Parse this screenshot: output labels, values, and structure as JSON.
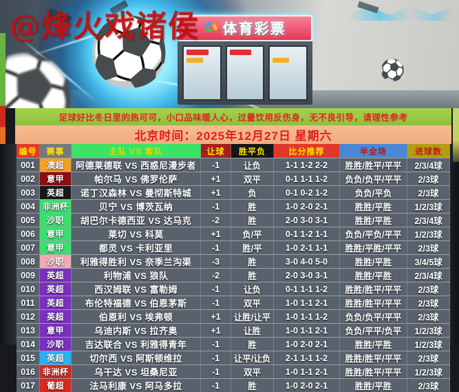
{
  "watermark": "@烽火戏诸侯",
  "hero": {
    "sign_text": "体育彩票",
    "soccer_ball_icon": "⚽"
  },
  "notice_banner": "足球好比冬日里的热可可，小口品味暖人心，过量饮用反伤身，无不良引导，请理性参考",
  "datetime_banner": "北京时间：2025年12月27日 星期六",
  "table": {
    "headers": [
      {
        "label": "编号",
        "bg": "#e23b2b",
        "fg": "#ffe400"
      },
      {
        "label": "赛事",
        "bg": "#74797f",
        "fg": "#ffe400"
      },
      {
        "label": "主队 VS 客队",
        "bg": "#3ae364",
        "fg": "#d8dc00"
      },
      {
        "label": "让球",
        "bg": "#a32020",
        "fg": "#ffe400"
      },
      {
        "label": "胜平负",
        "bg": "#161616",
        "fg": "#ffe400"
      },
      {
        "label": "比分推荐",
        "bg": "#e2372b",
        "fg": "#ffe400"
      },
      {
        "label": "半全场",
        "bg": "#4a87d4",
        "fg": "#a81d1d"
      },
      {
        "label": "进球数",
        "bg": "#b39c10",
        "fg": "#c21a1a"
      }
    ],
    "rows": [
      {
        "id": "001",
        "league": "澳超",
        "league_bg": "#efa224",
        "teams": "阿德莱德联 VS 西惑尼漫步者",
        "handicap": "-1",
        "wdl": "让负",
        "scores": "1-1 1-2 2-2",
        "half_full": "胜胜/胜平/平平",
        "goals": "2/3/4球"
      },
      {
        "id": "002",
        "league": "意甲",
        "league_bg": "#8f0d0d",
        "teams": "帕尔马 VS 佛罗伦萨",
        "handicap": "+1",
        "wdl": "双平",
        "scores": "0-1 1-1 1-2",
        "half_full": "负负/负平/平平",
        "goals": "2/3球"
      },
      {
        "id": "003",
        "league": "英超",
        "league_bg": "#17181a",
        "teams": "诺丁汉森林 VS 曼彻斯特城",
        "handicap": "+1",
        "wdl": "负",
        "scores": "0-1 0-2 1-2",
        "half_full": "负负/平负",
        "goals": "2/3球"
      },
      {
        "id": "004",
        "league": "非洲杯",
        "league_bg": "#3bdf6f",
        "teams": "贝宁 VS 博茨瓦纳",
        "handicap": "-1",
        "wdl": "胜",
        "scores": "1-0 2-0 2-1",
        "half_full": "胜胜/平胜",
        "goals": "1/2/3球"
      },
      {
        "id": "005",
        "league": "沙职",
        "league_bg": "#3bdf6f",
        "teams": "胡巴尔卡德西亚 VS 达马克",
        "handicap": "-2",
        "wdl": "胜",
        "scores": "2-0 3-0 3-1",
        "half_full": "胜胜/平胜",
        "goals": "2/3/4球"
      },
      {
        "id": "006",
        "league": "意甲",
        "league_bg": "#3bdf6f",
        "teams": "莱切 VS 科莫",
        "handicap": "+1",
        "wdl": "负/平",
        "scores": "0-1 1-2 1-1",
        "half_full": "负负/平负/平平",
        "goals": "1/2/3球"
      },
      {
        "id": "007",
        "league": "意甲",
        "league_bg": "#3bdf6f",
        "teams": "都灵 VS 卡利亚里",
        "handicap": "-1",
        "wdl": "胜/平",
        "scores": "1-0 2-1 1-1",
        "half_full": "胜胜/平胜/平平",
        "goals": "2/3球"
      },
      {
        "id": "008",
        "league": "沙职",
        "league_bg": "#f4a9b0",
        "teams": "利雅得胜利 VS 奈季兰沟渠",
        "handicap": "-3",
        "wdl": "胜",
        "scores": "3-0 4-0 5-0",
        "half_full": "胜胜/平胜",
        "goals": "3/4/5球"
      },
      {
        "id": "009",
        "league": "英超",
        "league_bg": "#7b2fc0",
        "teams": "利物浦 VS 狼队",
        "handicap": "-2",
        "wdl": "胜",
        "scores": "2-0 3-0 3-1",
        "half_full": "胜胜/平胜",
        "goals": "2/3/4球"
      },
      {
        "id": "010",
        "league": "英超",
        "league_bg": "#7b2fc0",
        "teams": "西汉姆联 VS 富勒姆",
        "handicap": "-1",
        "wdl": "让负",
        "scores": "0-1 1-1 1-2",
        "half_full": "胜胜/胜平/平平",
        "goals": "2/3球"
      },
      {
        "id": "011",
        "league": "英超",
        "league_bg": "#7b2fc0",
        "teams": "布伦特福德 VS 伯恩茅斯",
        "handicap": "-1",
        "wdl": "双平",
        "scores": "1-0 1-1 2-1",
        "half_full": "胜胜/胜平/平平",
        "goals": "2/3球"
      },
      {
        "id": "012",
        "league": "英超",
        "league_bg": "#7b2fc0",
        "teams": "伯恩利 VS 埃弗顿",
        "handicap": "+1",
        "wdl": "让胜/让平",
        "scores": "1-0 1-1 1-2",
        "half_full": "负负/负平/平平",
        "goals": "2/3球"
      },
      {
        "id": "013",
        "league": "意甲",
        "league_bg": "#7b2fc0",
        "teams": "乌迪内斯 VS 拉齐奥",
        "handicap": "+1",
        "wdl": "让胜",
        "scores": "1-0 1-1 2-1",
        "half_full": "负负/平平/负平",
        "goals": "1/2/3球"
      },
      {
        "id": "014",
        "league": "沙职",
        "league_bg": "#7b2fc0",
        "teams": "吉达联合 VS 利雅得青年",
        "handicap": "-1",
        "wdl": "胜",
        "scores": "1-0 2-0 2-1",
        "half_full": "胜胜/平胜",
        "goals": "1/2/3球"
      },
      {
        "id": "015",
        "league": "英超",
        "league_bg": "#29b1f2",
        "teams": "切尔西 VS 阿斯顿维拉",
        "handicap": "-1",
        "wdl": "让平/让负",
        "scores": "2-1 1-1 1-2",
        "half_full": "胜胜/胜平/平平",
        "goals": "2/3球"
      },
      {
        "id": "016",
        "league": "非洲杯",
        "league_bg": "#d8281f",
        "teams": "乌干达 VS 坦桑尼亚",
        "handicap": "-1",
        "wdl": "双平",
        "scores": "1-0 1-1 2-1",
        "half_full": "胜胜/胜平/平平",
        "goals": "1/2/3球"
      },
      {
        "id": "017",
        "league": "葡超",
        "league_bg": "#d8281f",
        "teams": "法马利康 VS 阿马多拉",
        "handicap": "-1",
        "wdl": "胜",
        "scores": "1-0 2-0 2-1",
        "half_full": "胜胜/平胜",
        "goals": "2/3球"
      }
    ]
  }
}
